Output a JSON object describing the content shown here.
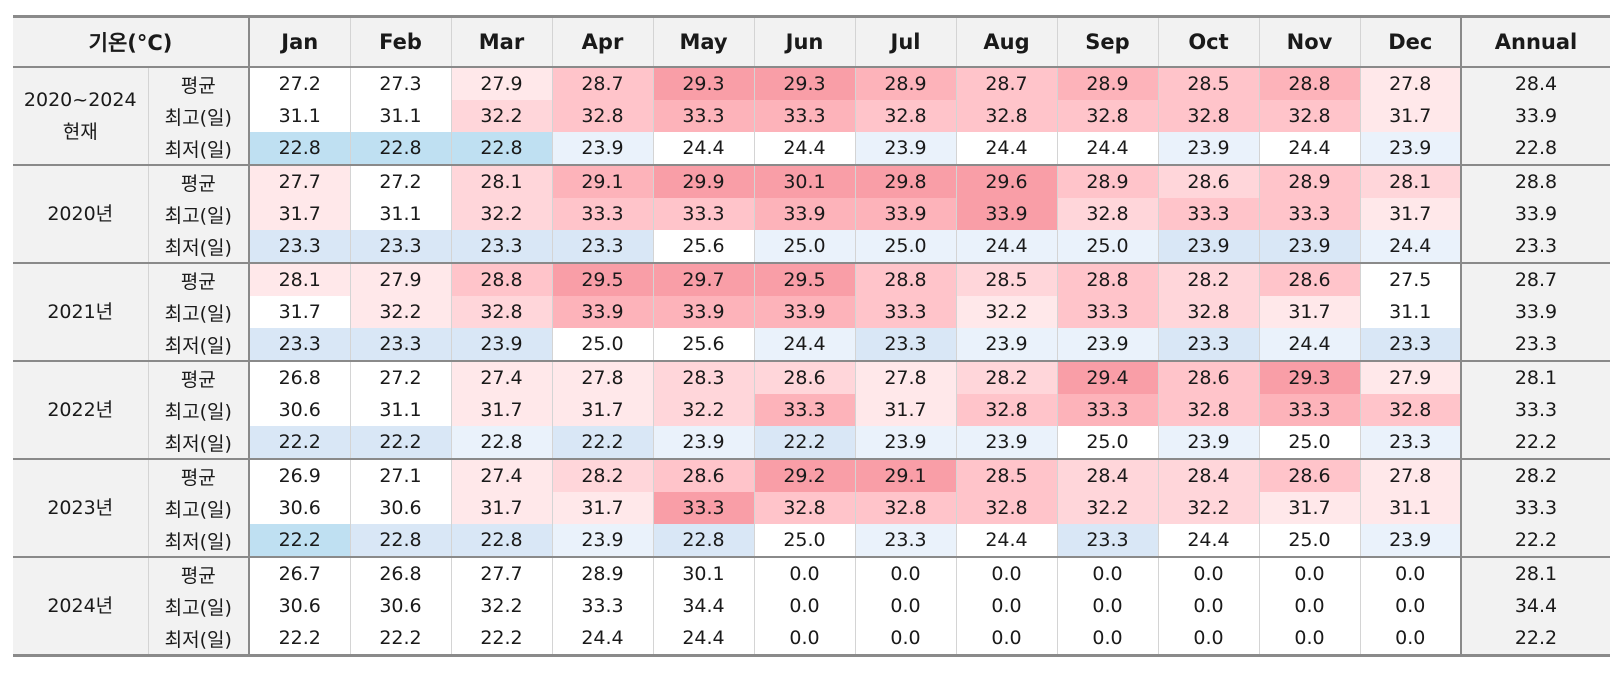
{
  "corner_label": "기온(°C)",
  "months": [
    "Jan",
    "Feb",
    "Mar",
    "Apr",
    "May",
    "Jun",
    "Jul",
    "Aug",
    "Sep",
    "Oct",
    "Nov",
    "Dec"
  ],
  "annual_label": "Annual",
  "groups": [
    {
      "label": "2020~2024\n현재",
      "rows": [
        {
          "label": "평균",
          "values": [
            "27.2",
            "27.3",
            "27.9",
            "28.7",
            "29.3",
            "29.3",
            "28.9",
            "28.7",
            "28.9",
            "28.5",
            "28.8",
            "27.8"
          ],
          "annual": "28.4"
        },
        {
          "label": "최고(일)",
          "values": [
            "31.1",
            "31.1",
            "32.2",
            "32.8",
            "33.3",
            "33.3",
            "32.8",
            "32.8",
            "32.8",
            "32.8",
            "32.8",
            "31.7"
          ],
          "annual": "33.9"
        },
        {
          "label": "최저(일)",
          "values": [
            "22.8",
            "22.8",
            "22.8",
            "23.9",
            "24.4",
            "24.4",
            "23.9",
            "24.4",
            "24.4",
            "23.9",
            "24.4",
            "23.9"
          ],
          "annual": "22.8"
        }
      ]
    },
    {
      "label": "2020년",
      "rows": [
        {
          "label": "평균",
          "values": [
            "27.7",
            "27.2",
            "28.1",
            "29.1",
            "29.9",
            "30.1",
            "29.8",
            "29.6",
            "28.9",
            "28.6",
            "28.9",
            "28.1"
          ],
          "annual": "28.8"
        },
        {
          "label": "최고(일)",
          "values": [
            "31.7",
            "31.1",
            "32.2",
            "33.3",
            "33.3",
            "33.9",
            "33.9",
            "33.9",
            "32.8",
            "33.3",
            "33.3",
            "31.7"
          ],
          "annual": "33.9"
        },
        {
          "label": "최저(일)",
          "values": [
            "23.3",
            "23.3",
            "23.3",
            "23.3",
            "25.6",
            "25.0",
            "25.0",
            "24.4",
            "25.0",
            "23.9",
            "23.9",
            "24.4"
          ],
          "annual": "23.3"
        }
      ]
    },
    {
      "label": "2021년",
      "rows": [
        {
          "label": "평균",
          "values": [
            "28.1",
            "27.9",
            "28.8",
            "29.5",
            "29.7",
            "29.5",
            "28.8",
            "28.5",
            "28.8",
            "28.2",
            "28.6",
            "27.5"
          ],
          "annual": "28.7"
        },
        {
          "label": "최고(일)",
          "values": [
            "31.7",
            "32.2",
            "32.8",
            "33.9",
            "33.9",
            "33.9",
            "33.3",
            "32.2",
            "33.3",
            "32.8",
            "31.7",
            "31.1"
          ],
          "annual": "33.9"
        },
        {
          "label": "최저(일)",
          "values": [
            "23.3",
            "23.3",
            "23.9",
            "25.0",
            "25.6",
            "24.4",
            "23.3",
            "23.9",
            "23.9",
            "23.3",
            "24.4",
            "23.3"
          ],
          "annual": "23.3"
        }
      ]
    },
    {
      "label": "2022년",
      "rows": [
        {
          "label": "평균",
          "values": [
            "26.8",
            "27.2",
            "27.4",
            "27.8",
            "28.3",
            "28.6",
            "27.8",
            "28.2",
            "29.4",
            "28.6",
            "29.3",
            "27.9"
          ],
          "annual": "28.1"
        },
        {
          "label": "최고(일)",
          "values": [
            "30.6",
            "31.1",
            "31.7",
            "31.7",
            "32.2",
            "33.3",
            "31.7",
            "32.8",
            "33.3",
            "32.8",
            "33.3",
            "32.8"
          ],
          "annual": "33.3"
        },
        {
          "label": "최저(일)",
          "values": [
            "22.2",
            "22.2",
            "22.8",
            "22.2",
            "23.9",
            "22.2",
            "23.9",
            "23.9",
            "25.0",
            "23.9",
            "25.0",
            "23.3"
          ],
          "annual": "22.2"
        }
      ]
    },
    {
      "label": "2023년",
      "rows": [
        {
          "label": "평균",
          "values": [
            "26.9",
            "27.1",
            "27.4",
            "28.2",
            "28.6",
            "29.2",
            "29.1",
            "28.5",
            "28.4",
            "28.4",
            "28.6",
            "27.8"
          ],
          "annual": "28.2"
        },
        {
          "label": "최고(일)",
          "values": [
            "30.6",
            "30.6",
            "31.7",
            "31.7",
            "33.3",
            "32.8",
            "32.8",
            "32.8",
            "32.2",
            "32.2",
            "31.7",
            "31.1"
          ],
          "annual": "33.3"
        },
        {
          "label": "최저(일)",
          "values": [
            "22.2",
            "22.8",
            "22.8",
            "23.9",
            "22.8",
            "25.0",
            "23.3",
            "24.4",
            "23.3",
            "24.4",
            "25.0",
            "23.9"
          ],
          "annual": "22.2"
        }
      ]
    },
    {
      "label": "2024년",
      "rows": [
        {
          "label": "평균",
          "values": [
            "26.7",
            "26.8",
            "27.7",
            "28.9",
            "30.1",
            "0.0",
            "0.0",
            "0.0",
            "0.0",
            "0.0",
            "0.0",
            "0.0"
          ],
          "annual": "28.1"
        },
        {
          "label": "최고(일)",
          "values": [
            "30.6",
            "30.6",
            "32.2",
            "33.3",
            "34.4",
            "0.0",
            "0.0",
            "0.0",
            "0.0",
            "0.0",
            "0.0",
            "0.0"
          ],
          "annual": "34.4"
        },
        {
          "label": "최저(일)",
          "values": [
            "22.2",
            "22.2",
            "22.2",
            "24.4",
            "24.4",
            "0.0",
            "0.0",
            "0.0",
            "0.0",
            "0.0",
            "0.0",
            "0.0"
          ],
          "annual": "22.2"
        }
      ]
    }
  ],
  "cell_shading": [
    [
      "n",
      "n",
      "r1",
      "r3",
      "r5",
      "r5",
      "r4",
      "r3",
      "r4",
      "r3",
      "r4",
      "r1"
    ],
    [
      "n",
      "n",
      "r2",
      "r3",
      "r4",
      "r4",
      "r3",
      "r3",
      "r3",
      "r3",
      "r3",
      "r1"
    ],
    [
      "b3",
      "b3",
      "b3",
      "b1",
      "n",
      "n",
      "b1",
      "n",
      "n",
      "b1",
      "n",
      "b1"
    ],
    [
      "r1",
      "n",
      "r2",
      "r4",
      "r5",
      "r5",
      "r5",
      "r5",
      "r3",
      "r2",
      "r3",
      "r2"
    ],
    [
      "r1",
      "n",
      "r2",
      "r3",
      "r3",
      "r4",
      "r4",
      "r5",
      "r2",
      "r3",
      "r3",
      "r1"
    ],
    [
      "b2",
      "b2",
      "b2",
      "b2",
      "n",
      "b1",
      "b1",
      "b1",
      "b1",
      "b2",
      "b2",
      "b1"
    ],
    [
      "r1",
      "r1",
      "r3",
      "r5",
      "r5",
      "r5",
      "r3",
      "r2",
      "r3",
      "r2",
      "r3",
      "n"
    ],
    [
      "n",
      "r1",
      "r2",
      "r4",
      "r4",
      "r4",
      "r3",
      "r1",
      "r3",
      "r2",
      "r1",
      "n"
    ],
    [
      "b2",
      "b2",
      "b2",
      "n",
      "n",
      "b1",
      "b2",
      "b1",
      "b1",
      "b2",
      "b1",
      "b2"
    ],
    [
      "n",
      "n",
      "r1",
      "r1",
      "r2",
      "r2",
      "r1",
      "r2",
      "r5",
      "r3",
      "r5",
      "r1"
    ],
    [
      "n",
      "n",
      "r1",
      "r1",
      "r2",
      "r4",
      "r1",
      "r3",
      "r4",
      "r3",
      "r4",
      "r3"
    ],
    [
      "b2",
      "b2",
      "b1",
      "b2",
      "b1",
      "b2",
      "b1",
      "b1",
      "n",
      "b1",
      "n",
      "b1"
    ],
    [
      "n",
      "n",
      "r1",
      "r2",
      "r3",
      "r5",
      "r5",
      "r3",
      "r2",
      "r2",
      "r3",
      "r1"
    ],
    [
      "n",
      "n",
      "r1",
      "r1",
      "r5",
      "r3",
      "r3",
      "r3",
      "r2",
      "r2",
      "r1",
      "r1"
    ],
    [
      "b3",
      "b2",
      "b2",
      "b1",
      "b2",
      "n",
      "b1",
      "n",
      "b2",
      "n",
      "n",
      "b1"
    ],
    [
      "n",
      "n",
      "n",
      "n",
      "n",
      "n",
      "n",
      "n",
      "n",
      "n",
      "n",
      "n"
    ],
    [
      "n",
      "n",
      "n",
      "n",
      "n",
      "n",
      "n",
      "n",
      "n",
      "n",
      "n",
      "n"
    ],
    [
      "n",
      "n",
      "n",
      "n",
      "n",
      "n",
      "n",
      "n",
      "n",
      "n",
      "n",
      "n"
    ]
  ],
  "shade_colors": {
    "n": "#ffffff",
    "r1": "#ffe8ea",
    "r2": "#ffd6da",
    "r3": "#ffc4ca",
    "r4": "#fdb3ba",
    "r5": "#f99ea7",
    "b1": "#eaf2fb",
    "b2": "#d9e7f6",
    "b3": "#bfe0f2"
  }
}
